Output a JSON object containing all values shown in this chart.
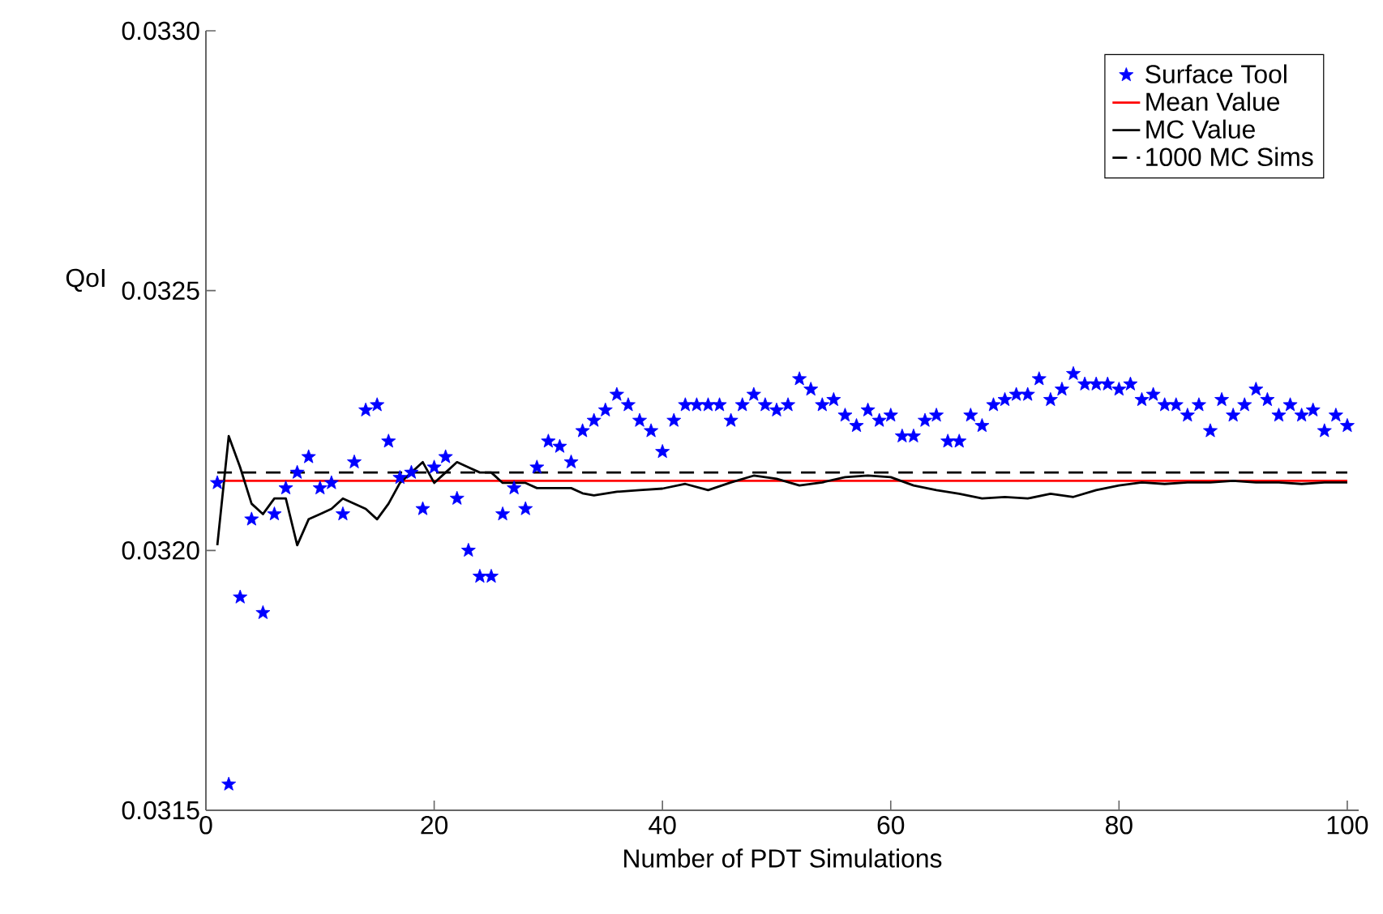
{
  "chart_data": {
    "type": "line",
    "xlabel": "Number of PDT Simulations",
    "ylabel": "QoI",
    "xlim": [
      0,
      101
    ],
    "xticks": [
      0,
      20,
      40,
      60,
      80,
      100
    ],
    "ylim": [
      0.0315,
      0.033
    ],
    "yticks": [
      {
        "value": 0.0315,
        "label": "0.0315"
      },
      {
        "value": 0.032,
        "label": "0.0320"
      },
      {
        "value": 0.0325,
        "label": "0.0325"
      },
      {
        "value": 0.033,
        "label": "0.0330"
      }
    ],
    "legend": "top right",
    "grid": false,
    "series": [
      {
        "name": "Surface Tool",
        "type": "scatter",
        "marker": "star",
        "color": "#0000ff",
        "x": [
          1,
          2,
          3,
          4,
          5,
          6,
          7,
          8,
          9,
          10,
          11,
          12,
          13,
          14,
          15,
          16,
          17,
          18,
          19,
          20,
          21,
          22,
          23,
          24,
          25,
          26,
          27,
          28,
          29,
          30,
          31,
          32,
          33,
          34,
          35,
          36,
          37,
          38,
          39,
          40,
          41,
          42,
          43,
          44,
          45,
          46,
          47,
          48,
          49,
          50,
          51,
          52,
          53,
          54,
          55,
          56,
          57,
          58,
          59,
          60,
          61,
          62,
          63,
          64,
          65,
          66,
          67,
          68,
          69,
          70,
          71,
          72,
          73,
          74,
          75,
          76,
          77,
          78,
          79,
          80,
          81,
          82,
          83,
          84,
          85,
          86,
          87,
          88,
          89,
          90,
          91,
          92,
          93,
          94,
          95,
          96,
          97,
          98,
          99,
          100
        ],
        "values": [
          0.03213,
          0.03155,
          0.03191,
          0.03206,
          0.03188,
          0.03207,
          0.03212,
          0.03215,
          0.03218,
          0.03212,
          0.03213,
          0.03207,
          0.03217,
          0.03227,
          0.03228,
          0.03221,
          0.03214,
          0.03215,
          0.03208,
          0.03216,
          0.03218,
          0.0321,
          0.032,
          0.03195,
          0.03195,
          0.03207,
          0.03212,
          0.03208,
          0.03216,
          0.03221,
          0.0322,
          0.03217,
          0.03223,
          0.03225,
          0.03227,
          0.0323,
          0.03228,
          0.03225,
          0.03223,
          0.03219,
          0.03225,
          0.03228,
          0.03228,
          0.03228,
          0.03228,
          0.03225,
          0.03228,
          0.0323,
          0.03228,
          0.03227,
          0.03228,
          0.03233,
          0.03231,
          0.03228,
          0.03229,
          0.03226,
          0.03224,
          0.03227,
          0.03225,
          0.03226,
          0.03222,
          0.03222,
          0.03225,
          0.03226,
          0.03221,
          0.03221,
          0.03226,
          0.03224,
          0.03228,
          0.03229,
          0.0323,
          0.0323,
          0.03233,
          0.03229,
          0.03231,
          0.03234,
          0.03232,
          0.03232,
          0.03232,
          0.03231,
          0.03232,
          0.03229,
          0.0323,
          0.03228,
          0.03228,
          0.03226,
          0.03228,
          0.03223,
          0.03229,
          0.03226,
          0.03228,
          0.03231,
          0.03229,
          0.03226,
          0.03228,
          0.03226,
          0.03227,
          0.03223,
          0.03226,
          0.03224
        ]
      },
      {
        "name": "Mean Value",
        "line_style": "solid",
        "color": "#ff0000",
        "x": [
          1,
          100
        ],
        "values": [
          0.032134,
          0.032134
        ]
      },
      {
        "name": "MC Value",
        "line_style": "solid",
        "color": "#000000",
        "x": [
          1,
          2,
          3,
          4,
          5,
          6,
          7,
          8,
          9,
          10,
          11,
          12,
          13,
          14,
          15,
          16,
          17,
          18,
          19,
          20,
          21,
          22,
          23,
          24,
          25,
          26,
          27,
          28,
          29,
          30,
          31,
          32,
          33,
          34,
          36,
          38,
          40,
          42,
          44,
          46,
          48,
          50,
          52,
          54,
          56,
          58,
          60,
          62,
          64,
          66,
          68,
          70,
          72,
          74,
          76,
          78,
          80,
          82,
          84,
          86,
          88,
          90,
          92,
          94,
          96,
          98,
          100
        ],
        "values": [
          0.03201,
          0.03222,
          0.03216,
          0.03209,
          0.03207,
          0.0321,
          0.0321,
          0.03201,
          0.03206,
          0.03207,
          0.03208,
          0.0321,
          0.03209,
          0.03208,
          0.03206,
          0.03209,
          0.03213,
          0.03215,
          0.03217,
          0.03213,
          0.03215,
          0.03217,
          0.03216,
          0.03215,
          0.03215,
          0.03213,
          0.03213,
          0.03213,
          0.03212,
          0.03212,
          0.03212,
          0.03212,
          0.03211,
          0.032106,
          0.032113,
          0.032116,
          0.032119,
          0.032128,
          0.032116,
          0.032131,
          0.032144,
          0.032138,
          0.032125,
          0.032131,
          0.032141,
          0.032144,
          0.032141,
          0.032125,
          0.032116,
          0.032109,
          0.0321,
          0.032103,
          0.0321,
          0.032109,
          0.032103,
          0.032116,
          0.032125,
          0.032131,
          0.032128,
          0.032131,
          0.032131,
          0.032134,
          0.032131,
          0.032131,
          0.032128,
          0.032131,
          0.032131
        ]
      },
      {
        "name": "1000 MC Sims",
        "line_style": "dashed",
        "color": "#000000",
        "x": [
          1,
          100
        ],
        "values": [
          0.03215,
          0.03215
        ]
      }
    ]
  }
}
